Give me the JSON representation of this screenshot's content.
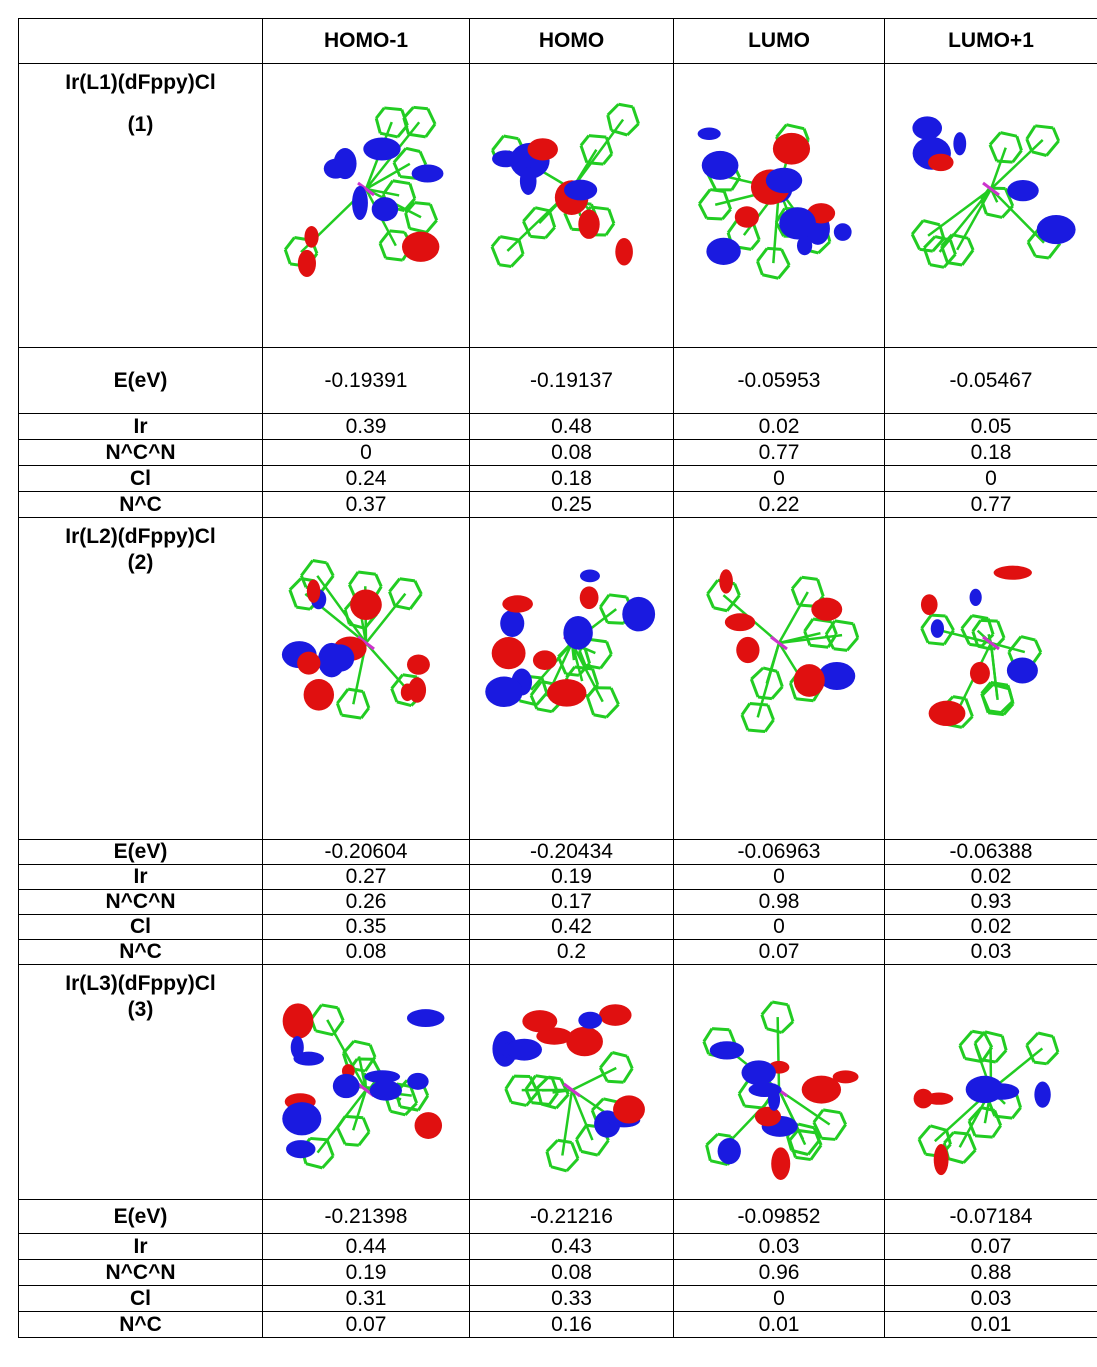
{
  "header": {
    "columns": [
      "HOMO-1",
      "HOMO",
      "LUMO",
      "LUMO+1"
    ]
  },
  "sections": [
    {
      "complex": [
        "Ir(L1)(dFppy)Cl",
        "(1)"
      ],
      "rows": [
        {
          "label": "E(eV)",
          "values": [
            "-0.19391",
            "-0.19137",
            "-0.05953",
            "-0.05467"
          ]
        },
        {
          "label": "Ir",
          "values": [
            "0.39",
            "0.48",
            "0.02",
            "0.05"
          ]
        },
        {
          "label": "N^C^N",
          "values": [
            "0",
            "0.08",
            "0.77",
            "0.18"
          ]
        },
        {
          "label": "Cl",
          "values": [
            "0.24",
            "0.18",
            "0",
            "0"
          ]
        },
        {
          "label": "N^C",
          "values": [
            "0.37",
            "0.25",
            "0.22",
            "0.77"
          ]
        }
      ]
    },
    {
      "complex": [
        "Ir(L2)(dFppy)Cl",
        "(2)"
      ],
      "rows": [
        {
          "label": "E(eV)",
          "values": [
            "-0.20604",
            "-0.20434",
            "-0.06963",
            "-0.06388"
          ]
        },
        {
          "label": "Ir",
          "values": [
            "0.27",
            "0.19",
            "0",
            "0.02"
          ]
        },
        {
          "label": "N^C^N",
          "values": [
            "0.26",
            "0.17",
            "0.98",
            "0.93"
          ]
        },
        {
          "label": "Cl",
          "values": [
            "0.35",
            "0.42",
            "0",
            "0.02"
          ]
        },
        {
          "label": "N^C",
          "values": [
            "0.08",
            "0.2",
            "0.07",
            "0.03"
          ]
        }
      ]
    },
    {
      "complex": [
        "Ir(L3)(dFppy)Cl",
        "(3)"
      ],
      "rows": [
        {
          "label": "E(eV)",
          "values": [
            "-0.21398",
            "-0.21216",
            "-0.09852",
            "-0.07184"
          ]
        },
        {
          "label": "Ir",
          "values": [
            "0.44",
            "0.43",
            "0.03",
            "0.07"
          ]
        },
        {
          "label": "N^C^N",
          "values": [
            "0.19",
            "0.08",
            "0.96",
            "0.88"
          ]
        },
        {
          "label": "Cl",
          "values": [
            "0.31",
            "0.33",
            "0",
            "0.03"
          ]
        },
        {
          "label": "N^C",
          "values": [
            "0.07",
            "0.16",
            "0.01",
            "0.01"
          ]
        }
      ]
    }
  ]
}
